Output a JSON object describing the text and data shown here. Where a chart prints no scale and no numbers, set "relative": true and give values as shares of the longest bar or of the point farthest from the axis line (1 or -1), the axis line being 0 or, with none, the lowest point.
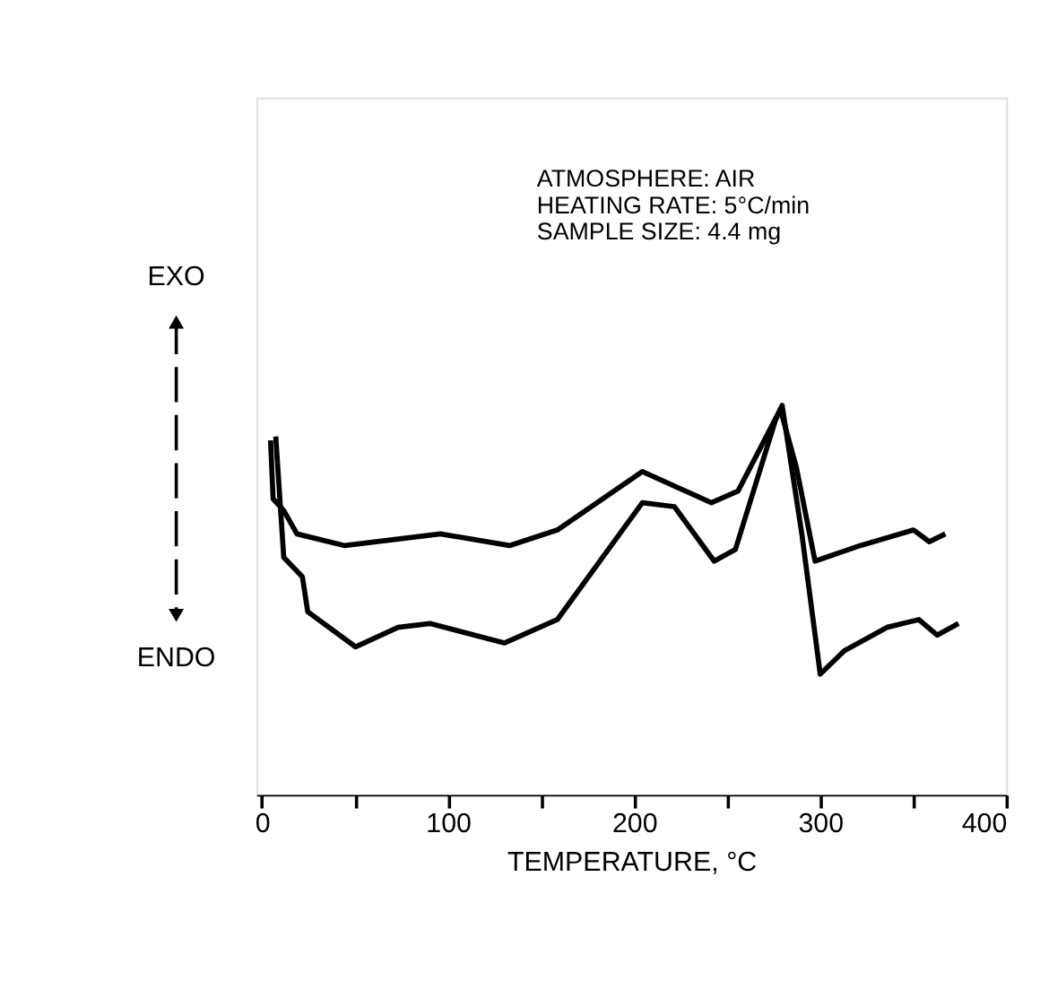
{
  "chart_data": {
    "type": "line",
    "relative": true,
    "xlabel": "TEMPERATURE, °C",
    "xlim": [
      -3,
      400
    ],
    "xticks": [
      0,
      {
        "value": 50,
        "label": null
      },
      100,
      {
        "value": 150,
        "label": null
      },
      200,
      {
        "value": 250,
        "label": null
      },
      300,
      {
        "value": 350,
        "label": null
      },
      400
    ],
    "annotations": [
      "ATMOSPHERE: AIR",
      "HEATING RATE: 5°C/min",
      "SAMPLE SIZE: 4.4 mg",
      "EXO",
      "ENDO"
    ],
    "grid": false,
    "legend": false,
    "marker": "none",
    "line_style": "solid",
    "series": [
      {
        "color": "#000000",
        "x": [
          4.6,
          6.0,
          11.7,
          18.8,
          44.5,
          95.9,
          133,
          158.7,
          204.4,
          241.5,
          255.8,
          278.6,
          287.2,
          297.2,
          321.5,
          350.1,
          358.6,
          367.2
        ],
        "values": [
          0.91,
          0.76,
          0.73,
          0.67,
          0.64,
          0.67,
          0.64,
          0.68,
          0.83,
          0.75,
          0.78,
          0.99,
          0.84,
          0.6,
          0.64,
          0.68,
          0.65,
          0.67
        ]
      },
      {
        "color": "#000000",
        "x": [
          7.4,
          11.7,
          21.7,
          24.6,
          50.3,
          73.1,
          90.2,
          130.2,
          158.7,
          204.4,
          221.6,
          243,
          254.4,
          275.8,
          279.5,
          290.1,
          300,
          312.9,
          335.8,
          353,
          362.9,
          374.3
        ],
        "values": [
          0.92,
          0.61,
          0.56,
          0.47,
          0.38,
          0.43,
          0.44,
          0.39,
          0.45,
          0.75,
          0.74,
          0.6,
          0.63,
          0.96,
          1.0,
          0.67,
          0.31,
          0.37,
          0.43,
          0.45,
          0.41,
          0.44
        ]
      }
    ]
  }
}
